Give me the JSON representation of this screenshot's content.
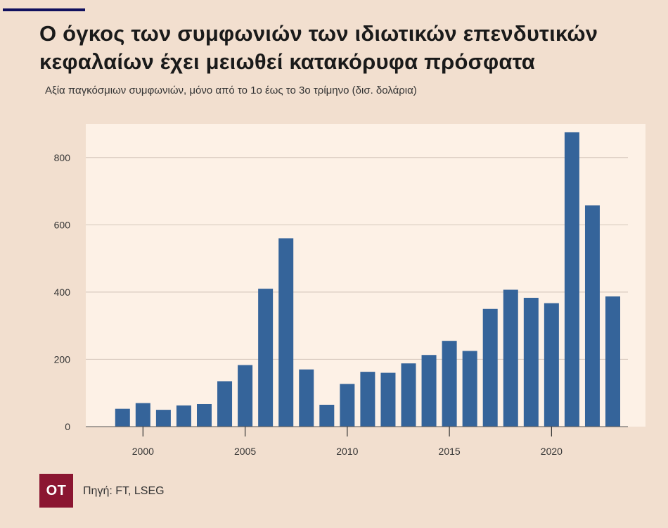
{
  "header": {
    "title": "Ο όγκος των συμφωνιών των ιδιωτικών επενδυτικών κεφαλαίων έχει μειωθεί κατακόρυφα πρόσφατα",
    "subtitle": "Αξία παγκόσμιων συμφωνιών, μόνο από το 1ο έως το 3ο τρίμηνο (δισ. δολάρια)"
  },
  "footer": {
    "logo_text": "OT",
    "source": "Πηγή: FT, LSEG"
  },
  "colors": {
    "bar": "#35649a",
    "plot_background": "#fdf1e6",
    "page_background": "#f2dfcf",
    "logo": "#8b1631",
    "top_rule": "#10105e"
  },
  "chart_data": {
    "type": "bar",
    "x": [
      1999,
      2000,
      2001,
      2002,
      2003,
      2004,
      2005,
      2006,
      2007,
      2008,
      2009,
      2010,
      2011,
      2012,
      2013,
      2014,
      2015,
      2016,
      2017,
      2018,
      2019,
      2020,
      2021,
      2022,
      2023
    ],
    "values": [
      53,
      70,
      50,
      63,
      67,
      135,
      183,
      410,
      560,
      170,
      65,
      127,
      163,
      160,
      188,
      213,
      255,
      225,
      350,
      407,
      383,
      367,
      875,
      658,
      387
    ],
    "xticks": [
      2000,
      2005,
      2010,
      2015,
      2020
    ],
    "yticks": [
      0,
      200,
      400,
      600,
      800
    ],
    "xlim": [
      1997.2,
      2024.6
    ],
    "ylim": [
      0,
      900
    ],
    "grid": "horizontal"
  }
}
